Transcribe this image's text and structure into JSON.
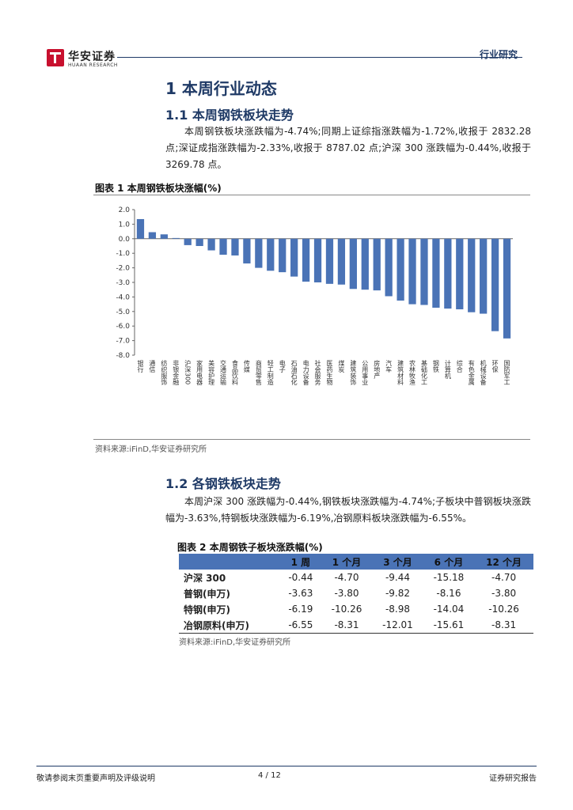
{
  "header": {
    "logo_name": "华安证券",
    "logo_sub": "HUAAN RESEARCH",
    "section_label": "行业研究"
  },
  "section1": {
    "heading": "1 本周行业动态"
  },
  "section11": {
    "heading": "1.1 本周钢铁板块走势",
    "paragraph": "本周钢铁板块涨跌幅为-4.74%;同期上证综指涨跌幅为-1.72%,收报于 2832.28 点;深证成指涨跌幅为-2.33%,收报于 8787.02 点;沪深 300 涨跌幅为-0.44%,收报于 3269.78 点。"
  },
  "figure1": {
    "title": "图表 1 本周钢铁板块涨幅(%)",
    "source": "资料来源:iFinD,华安证券研究所"
  },
  "chart_data": {
    "type": "bar",
    "title": "",
    "ylim": [
      -8.0,
      2.0
    ],
    "yticks": [
      "2.0",
      "1.0",
      "0.0",
      "-1.0",
      "-2.0",
      "-3.0",
      "-4.0",
      "-5.0",
      "-6.0",
      "-7.0",
      "-8.0"
    ],
    "categories": [
      "银行",
      "通信",
      "纺织服饰",
      "非银金融",
      "沪深300",
      "家用电器",
      "美容护理",
      "交通运输",
      "食品饮料",
      "传媒",
      "商贸零售",
      "轻工制造",
      "电子",
      "石油石化",
      "电力设备",
      "社会服务",
      "医药生物",
      "煤炭",
      "建筑装饰",
      "公用事业",
      "房地产",
      "汽车",
      "建筑材料",
      "农林牧渔",
      "基础化工",
      "钢铁",
      "计算机",
      "综合",
      "有色金属",
      "机械设备",
      "环保",
      "国防军工"
    ],
    "values": [
      1.35,
      0.45,
      0.3,
      0.05,
      -0.44,
      -0.5,
      -0.8,
      -1.1,
      -1.15,
      -1.7,
      -2.0,
      -2.2,
      -2.3,
      -2.6,
      -2.95,
      -3.0,
      -3.1,
      -3.15,
      -3.45,
      -3.5,
      -3.55,
      -3.95,
      -4.25,
      -4.5,
      -4.55,
      -4.74,
      -4.8,
      -4.85,
      -5.05,
      -5.15,
      -6.35,
      -6.85
    ],
    "bar_color": "#4a73b6",
    "grid": false
  },
  "section12": {
    "heading": "1.2 各钢铁板块走势",
    "paragraph": "本周沪深 300 涨跌幅为-0.44%,钢铁板块涨跌幅为-4.74%;子板块中普钢板块涨跌幅为-3.63%,特钢板块涨跌幅为-6.19%,冶钢原料板块涨跌幅为-6.55%。"
  },
  "figure2": {
    "title": "图表 2 本周钢铁子板块涨跌幅(%)",
    "columns": [
      "1 周",
      "1 个月",
      "3 个月",
      "6 个月",
      "12 个月"
    ],
    "rows": [
      {
        "label": "沪深 300",
        "values": [
          "-0.44",
          "-4.70",
          "-9.44",
          "-15.18",
          "-4.70"
        ]
      },
      {
        "label": "普钢(申万)",
        "values": [
          "-3.63",
          "-3.80",
          "-9.82",
          "-8.16",
          "-3.80"
        ]
      },
      {
        "label": "特钢(申万)",
        "values": [
          "-6.19",
          "-10.26",
          "-8.98",
          "-14.04",
          "-10.26"
        ]
      },
      {
        "label": "冶钢原料(申万)",
        "values": [
          "-6.55",
          "-8.31",
          "-12.01",
          "-15.61",
          "-8.31"
        ]
      }
    ],
    "source": "资料来源:iFinD,华安证券研究所"
  },
  "footer": {
    "disclaimer": "敬请参阅末页重要声明及评级说明",
    "page": "4 / 12",
    "report_type": "证券研究报告"
  }
}
